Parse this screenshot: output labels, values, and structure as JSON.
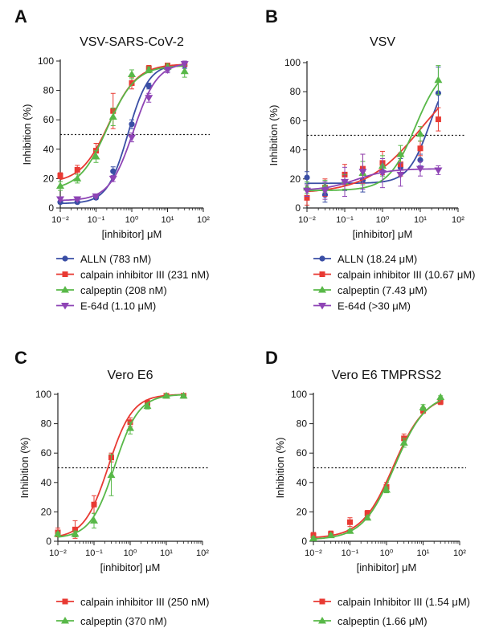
{
  "colors": {
    "ALLN": "#3a4ea5",
    "calpain inhibitor III": "#e83a33",
    "calpeptin": "#58b848",
    "E-64d": "#8e44b5",
    "axis": "#222222",
    "threshold": "#111111"
  },
  "chart_data": [
    {
      "type": "line",
      "panel_letter": "A",
      "title": "VSV-SARS-CoV-2",
      "xlabel": "[inhibitor] μM",
      "ylabel": "Inhibition (%)",
      "x_scale": "log",
      "xlim": [
        0.01,
        100
      ],
      "ylim": [
        0,
        100
      ],
      "x_ticks": [
        "10⁻²",
        "10⁻¹",
        "10⁰",
        "10¹",
        "10²"
      ],
      "y_ticks": [
        "0",
        "20",
        "40",
        "60",
        "80",
        "100"
      ],
      "threshold_y": 50,
      "x": [
        0.01,
        0.03,
        0.1,
        0.3,
        1,
        3,
        10,
        30
      ],
      "series": [
        {
          "name": "ALLN (783 nM)",
          "key": "ALLN",
          "marker": "circle",
          "values": [
            4,
            4,
            7,
            25,
            57,
            83,
            95,
            97
          ],
          "errors": [
            1,
            1,
            1,
            3,
            3,
            2,
            2,
            2
          ],
          "fit": {
            "bottom": 3,
            "top": 98,
            "ec50": 0.783,
            "hill": 1.5
          }
        },
        {
          "name": "calpain inhibitor III (231 nM)",
          "key": "calpain inhibitor III",
          "marker": "square",
          "values": [
            22,
            26,
            39,
            66,
            85,
            95,
            97,
            98
          ],
          "errors": [
            2,
            3,
            5,
            12,
            4,
            2,
            1,
            1
          ],
          "fit": {
            "bottom": 17,
            "top": 98,
            "ec50": 0.231,
            "hill": 1.1
          }
        },
        {
          "name": "calpeptin (208 nM)",
          "key": "calpeptin",
          "marker": "triangle",
          "values": [
            15,
            20,
            35,
            62,
            91,
            94,
            96,
            93
          ],
          "errors": [
            3,
            3,
            4,
            6,
            3,
            2,
            2,
            4
          ],
          "fit": {
            "bottom": 12,
            "top": 97,
            "ec50": 0.208,
            "hill": 1.1
          }
        },
        {
          "name": "E-64d (1.10 μM)",
          "key": "E-64d",
          "marker": "triangle-down",
          "values": [
            6,
            6,
            8,
            20,
            48,
            75,
            94,
            98
          ],
          "errors": [
            1,
            1,
            1,
            2,
            3,
            3,
            2,
            2
          ],
          "fit": {
            "bottom": 5,
            "top": 99,
            "ec50": 1.1,
            "hill": 1.3
          }
        }
      ]
    },
    {
      "type": "line",
      "panel_letter": "B",
      "title": "VSV",
      "xlabel": "[inhibitor] μM",
      "ylabel": "Inhibition (%)",
      "x_scale": "log",
      "xlim": [
        0.01,
        100
      ],
      "ylim": [
        0,
        100
      ],
      "x_ticks": [
        "10⁻²",
        "10⁻¹",
        "10⁰",
        "10¹",
        "10²"
      ],
      "y_ticks": [
        "0",
        "20",
        "40",
        "60",
        "80",
        "100"
      ],
      "threshold_y": 50,
      "x": [
        0.01,
        0.03,
        0.1,
        0.3,
        1,
        3,
        10,
        30
      ],
      "series": [
        {
          "name": "ALLN (18.24 μM)",
          "key": "ALLN",
          "marker": "circle",
          "values": [
            21,
            9,
            18,
            19,
            25,
            28,
            33,
            79
          ],
          "errors": [
            4,
            5,
            6,
            8,
            7,
            6,
            4,
            18
          ],
          "fit": {
            "bottom": 17,
            "top": 100,
            "ec50": 18.24,
            "hill": 1.5
          }
        },
        {
          "name": "calpain inhibitor III (10.67 μM)",
          "key": "calpain inhibitor III",
          "marker": "square",
          "values": [
            7,
            14,
            23,
            27,
            31,
            30,
            41,
            61
          ],
          "errors": [
            5,
            6,
            7,
            10,
            8,
            8,
            5,
            8
          ],
          "fit": {
            "bottom": 10,
            "top": 100,
            "ec50": 10.67,
            "hill": 0.6
          }
        },
        {
          "name": "calpeptin (7.43 μM)",
          "key": "calpeptin",
          "marker": "triangle",
          "values": [
            14,
            15,
            18,
            24,
            29,
            37,
            51,
            88
          ],
          "errors": [
            4,
            4,
            5,
            8,
            7,
            6,
            5,
            10
          ],
          "fit": {
            "bottom": 12,
            "top": 100,
            "ec50": 7.43,
            "hill": 1.2
          }
        },
        {
          "name": "E-64d (>30 μM)",
          "key": "E-64d",
          "marker": "triangle-down",
          "values": [
            12,
            12,
            18,
            25,
            24,
            23,
            27,
            26
          ],
          "errors": [
            4,
            6,
            10,
            12,
            10,
            8,
            5,
            3
          ],
          "fit": {
            "bottom": 12,
            "top": 27,
            "ec50": 0.2,
            "hill": 1.0
          }
        }
      ]
    },
    {
      "type": "line",
      "panel_letter": "C",
      "title": "Vero E6",
      "xlabel": "[inhibitor] μM",
      "ylabel": "Inhibition (%)",
      "x_scale": "log",
      "xlim": [
        0.01,
        100
      ],
      "ylim": [
        0,
        100
      ],
      "x_ticks": [
        "10⁻²",
        "10⁻¹",
        "10⁰",
        "10¹",
        "10²"
      ],
      "y_ticks": [
        "0",
        "20",
        "40",
        "60",
        "80",
        "100"
      ],
      "threshold_y": 50,
      "x": [
        0.01,
        0.03,
        0.1,
        0.3,
        1,
        3,
        10,
        30
      ],
      "series": [
        {
          "name": "calpain inhibitor III (250 nM)",
          "key": "calpain inhibitor III",
          "marker": "square",
          "values": [
            6,
            8,
            25,
            57,
            81,
            94,
            99,
            99
          ],
          "errors": [
            3,
            6,
            6,
            3,
            3,
            2,
            1,
            1
          ],
          "fit": {
            "bottom": 2,
            "top": 100,
            "ec50": 0.25,
            "hill": 1.3
          }
        },
        {
          "name": "calpeptin (370 nM)",
          "key": "calpeptin",
          "marker": "triangle",
          "values": [
            5,
            5,
            14,
            45,
            77,
            92,
            99,
            99
          ],
          "errors": [
            1,
            2,
            5,
            14,
            4,
            2,
            1,
            1
          ],
          "fit": {
            "bottom": 2,
            "top": 100,
            "ec50": 0.37,
            "hill": 1.3
          }
        }
      ]
    },
    {
      "type": "line",
      "panel_letter": "D",
      "title": "Vero E6 TMPRSS2",
      "xlabel": "[inhibitor] μM",
      "ylabel": "Inhibition (%)",
      "x_scale": "log",
      "xlim": [
        0.01,
        100
      ],
      "ylim": [
        0,
        100
      ],
      "x_ticks": [
        "10⁻²",
        "10⁻¹",
        "10⁰",
        "10¹",
        "10²"
      ],
      "y_ticks": [
        "0",
        "20",
        "40",
        "60",
        "80",
        "100"
      ],
      "threshold_y": 50,
      "x": [
        0.01,
        0.03,
        0.1,
        0.3,
        1,
        3,
        10,
        30
      ],
      "series": [
        {
          "name": "calpain Inhibitor III (1.54 μM)",
          "key": "calpain inhibitor III",
          "marker": "square",
          "values": [
            4,
            5,
            13,
            19,
            37,
            70,
            89,
            95
          ],
          "errors": [
            2,
            2,
            3,
            2,
            3,
            3,
            2,
            2
          ],
          "fit": {
            "bottom": 2,
            "top": 100,
            "ec50": 1.54,
            "hill": 1.0
          }
        },
        {
          "name": "calpeptin (1.66 μM)",
          "key": "calpeptin",
          "marker": "triangle",
          "values": [
            2,
            4,
            7,
            16,
            35,
            67,
            91,
            98
          ],
          "errors": [
            1,
            1,
            1,
            1,
            2,
            3,
            2,
            1
          ],
          "fit": {
            "bottom": 1,
            "top": 101,
            "ec50": 1.66,
            "hill": 1.0
          }
        }
      ]
    }
  ]
}
